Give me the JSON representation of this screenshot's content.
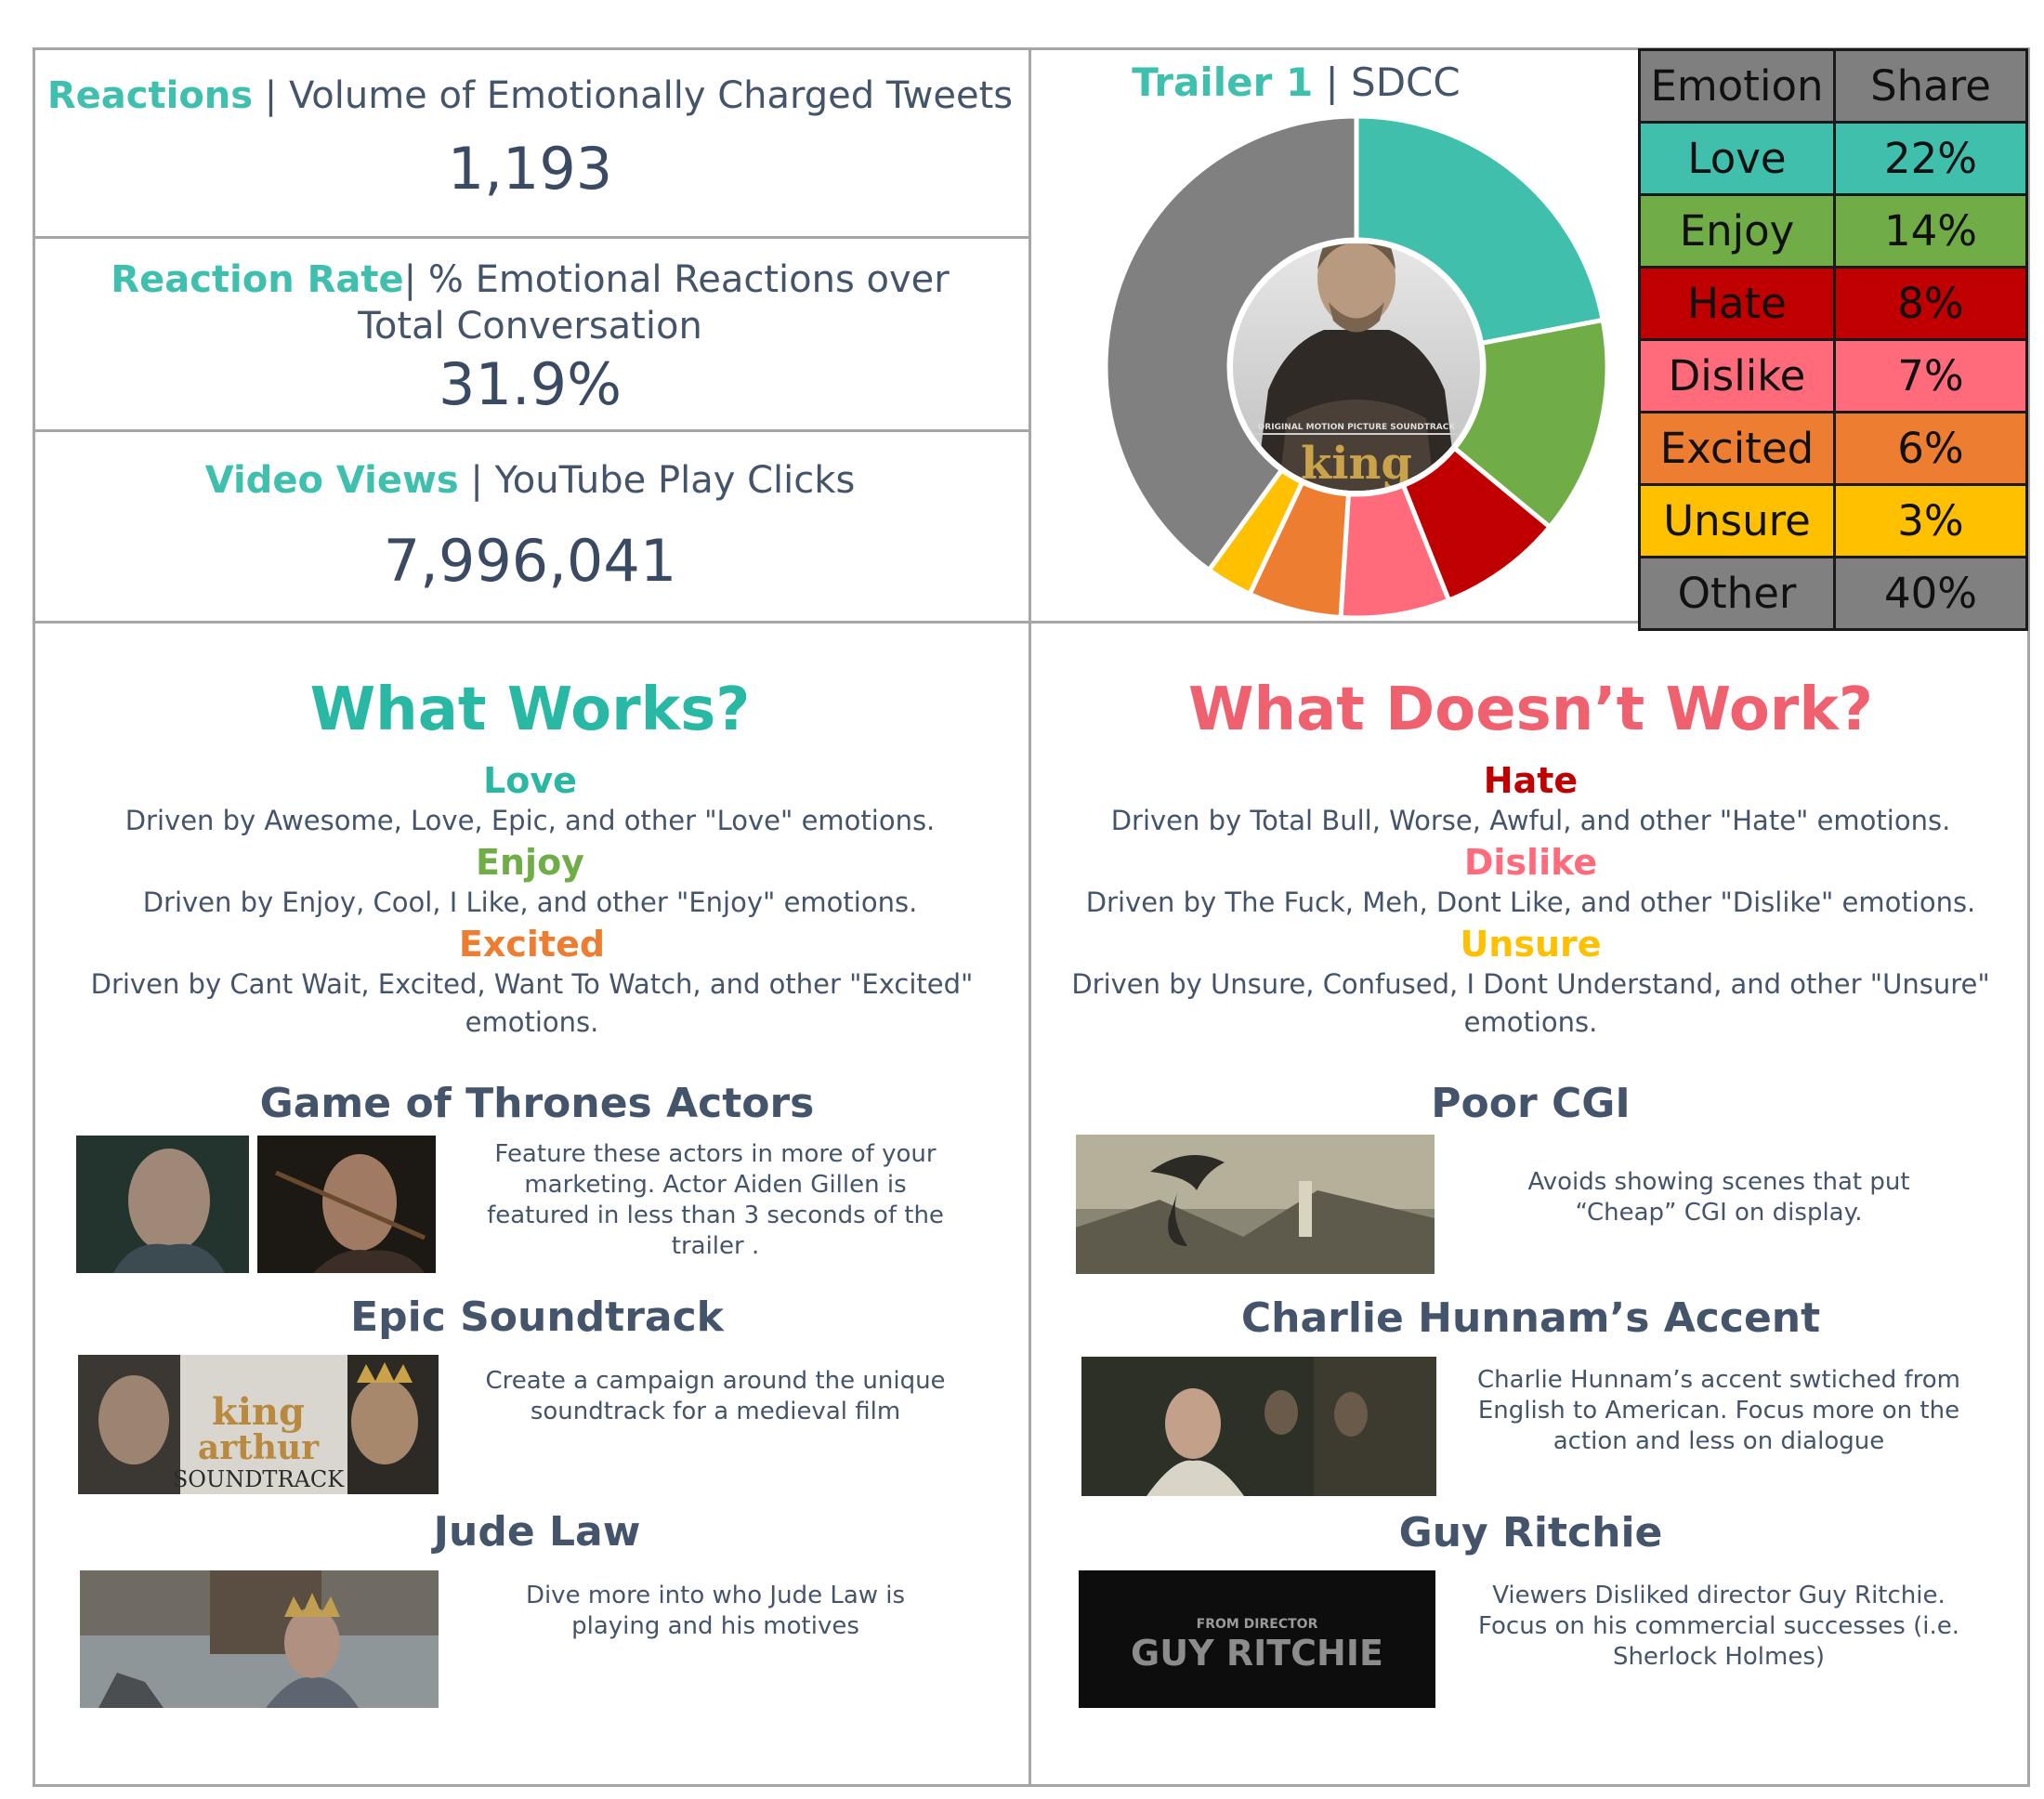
{
  "metrics": {
    "reactions": {
      "label": "Reactions",
      "desc": " | Volume of Emotionally Charged Tweets",
      "value": "1,193"
    },
    "reaction_rate": {
      "label": "Reaction Rate",
      "desc": "| % Emotional Reactions over Total Conversation",
      "value": "31.9%"
    },
    "video_views": {
      "label": "Video Views",
      "desc": " | YouTube Play Clicks",
      "value": "7,996,041"
    }
  },
  "chart_title": {
    "accent": "Trailer 1",
    "rest": " | SDCC"
  },
  "table_header": {
    "emotion": "Emotion",
    "share": "Share"
  },
  "chart_data": {
    "type": "pie",
    "title": "Trailer 1 | SDCC",
    "categories": [
      "Love",
      "Enjoy",
      "Hate",
      "Dislike",
      "Excited",
      "Unsure",
      "Other"
    ],
    "values": [
      22,
      14,
      8,
      7,
      6,
      3,
      40
    ],
    "labels": [
      "22%",
      "14%",
      "8%",
      "7%",
      "6%",
      "3%",
      "40%"
    ],
    "colors": [
      "#41bfad",
      "#70ad47",
      "#c00000",
      "#ff6b7a",
      "#ed7d31",
      "#ffc000",
      "#808080"
    ],
    "center_image": "album-cover-king-arthur"
  },
  "works": {
    "title": "What Works?",
    "title_color": "#29b8a3",
    "emotions": [
      {
        "name": "Love",
        "color": "#2ab8a4",
        "desc": "Driven by Awesome, Love, Epic, and other \"Love\" emotions."
      },
      {
        "name": "Enjoy",
        "color": "#70ad47",
        "desc": "Driven by Enjoy, Cool, I Like, and other \"Enjoy\" emotions."
      },
      {
        "name": "Excited",
        "color": "#ed7d31",
        "desc": "Driven by Cant Wait, Excited, Want To Watch, and other \"Excited\" emotions."
      }
    ],
    "items": [
      {
        "title": "Game of Thrones Actors",
        "text": "Feature these actors in more of your marketing. Actor Aiden Gillen is featured in less than 3 seconds of the trailer ."
      },
      {
        "title": "Epic Soundtrack",
        "text": "Create a campaign around the unique soundtrack for a medieval film"
      },
      {
        "title": "Jude Law",
        "text": "Dive more into who Jude Law is playing and his motives"
      }
    ]
  },
  "doesnt": {
    "title": "What Doesn’t Work?",
    "title_color": "#f0616f",
    "emotions": [
      {
        "name": "Hate",
        "color": "#c00000",
        "desc": "Driven by Total Bull, Worse, Awful, and other \"Hate\" emotions."
      },
      {
        "name": "Dislike",
        "color": "#ff6b7a",
        "desc": "Driven by The Fuck, Meh, Dont Like, and other \"Dislike\" emotions."
      },
      {
        "name": "Unsure",
        "color": "#ffc000",
        "desc": "Driven by Unsure, Confused, I Dont Understand, and other \"Unsure\" emotions."
      }
    ],
    "items": [
      {
        "title": "Poor CGI",
        "text": "Avoids showing scenes that put “Cheap” CGI on display."
      },
      {
        "title": "Charlie Hunnam’s Accent",
        "text": "Charlie Hunnam’s accent swtiched from English to American. Focus more on the action and less on dialogue"
      },
      {
        "title": "Guy Ritchie",
        "text": "Viewers Disliked director Guy Ritchie. Focus on his commercial successes (i.e. Sherlock Holmes)"
      }
    ]
  },
  "thumb_text": {
    "soundtrack_king": "king",
    "soundtrack_arthur": "arthur",
    "soundtrack_label": "SOUNDTRACK",
    "director_from": "FROM DIRECTOR",
    "director_name": "GUY RITCHIE",
    "album_caption": "ORIGINAL MOTION PICTURE SOUNDTRACK"
  }
}
